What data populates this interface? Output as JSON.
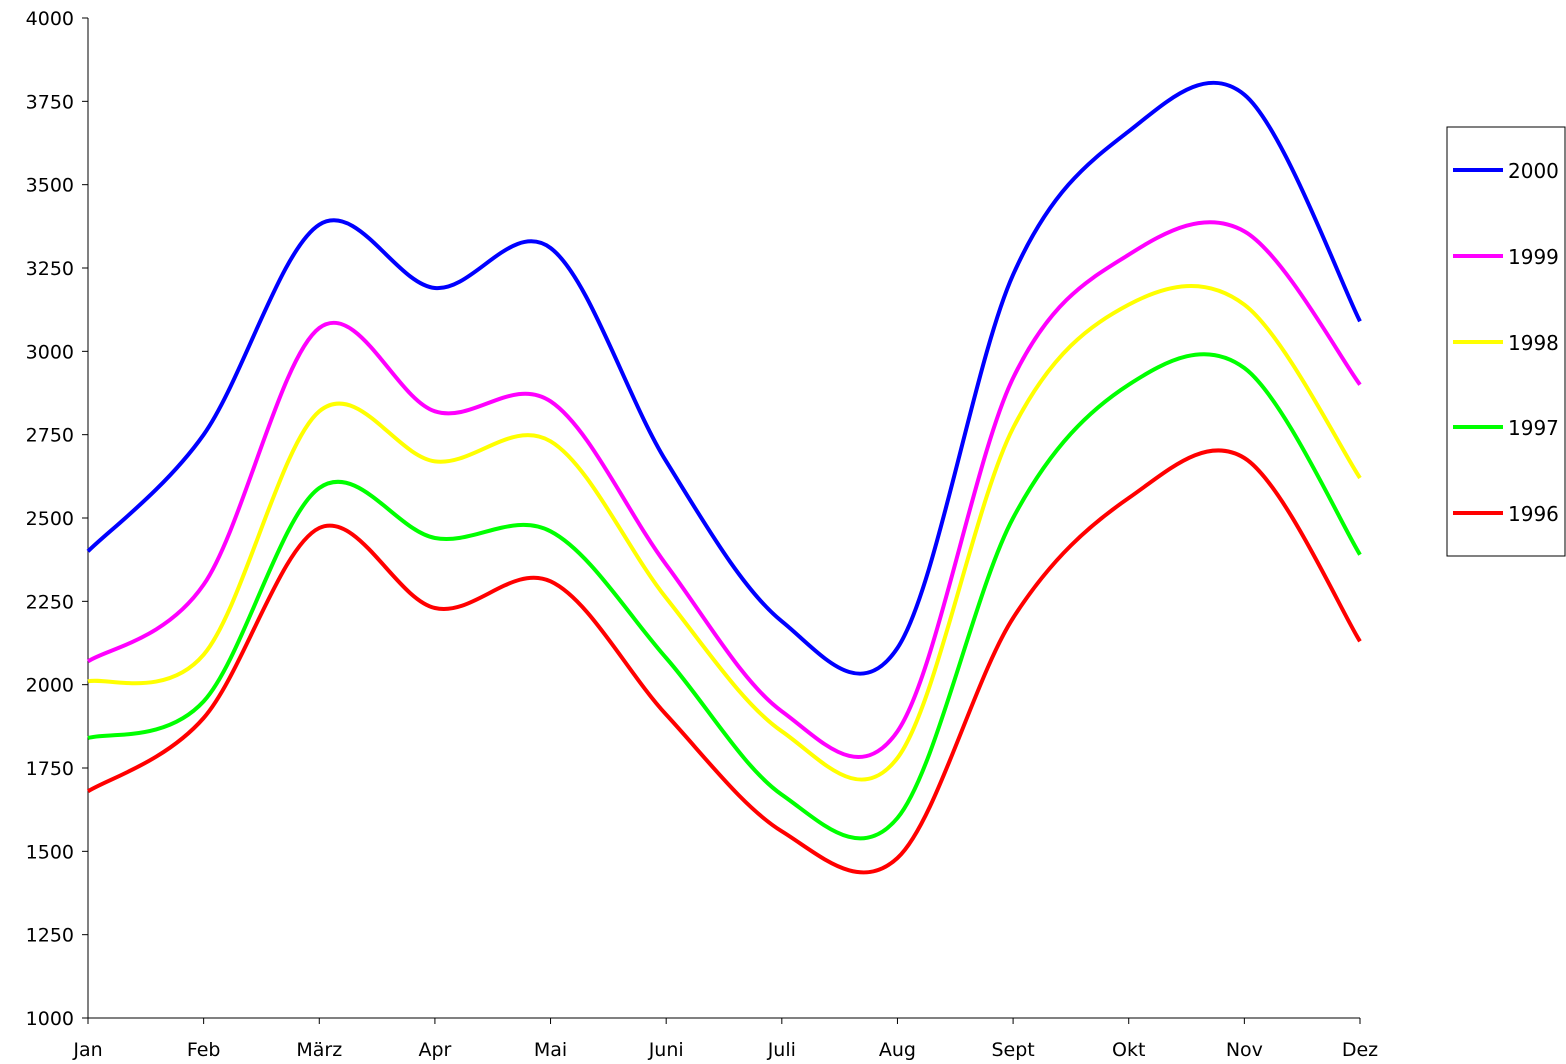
{
  "chart_data": {
    "type": "line",
    "title": "",
    "xlabel": "",
    "ylabel": "",
    "categories": [
      "Jan",
      "Feb",
      "März",
      "Apr",
      "Mai",
      "Juni",
      "Juli",
      "Aug",
      "Sept",
      "Okt",
      "Nov",
      "Dez"
    ],
    "ylim": [
      1000,
      4000
    ],
    "yticks": [
      "1000",
      "1250",
      "1500",
      "1750",
      "2000",
      "2250",
      "2500",
      "2750",
      "3000",
      "3250",
      "3500",
      "3750",
      "4000"
    ],
    "grid": false,
    "smooth": true,
    "legend_position": "right",
    "series": [
      {
        "name": "2000",
        "color": "#0000ff",
        "values": [
          2400,
          2750,
          3380,
          3190,
          3310,
          2670,
          2190,
          2110,
          3230,
          3660,
          3770,
          3090
        ]
      },
      {
        "name": "1999",
        "color": "#ff00ff",
        "values": [
          2070,
          2300,
          3070,
          2820,
          2850,
          2360,
          1920,
          1860,
          2920,
          3290,
          3360,
          2900
        ]
      },
      {
        "name": "1998",
        "color": "#ffff00",
        "values": [
          2010,
          2090,
          2820,
          2670,
          2730,
          2260,
          1860,
          1780,
          2770,
          3140,
          3140,
          2620
        ]
      },
      {
        "name": "1997",
        "color": "#00ff00",
        "values": [
          1840,
          1950,
          2590,
          2440,
          2460,
          2080,
          1670,
          1600,
          2500,
          2900,
          2950,
          2390
        ]
      },
      {
        "name": "1996",
        "color": "#ff0000",
        "values": [
          1680,
          1900,
          2470,
          2230,
          2310,
          1910,
          1560,
          1480,
          2200,
          2560,
          2680,
          2130
        ]
      }
    ]
  }
}
